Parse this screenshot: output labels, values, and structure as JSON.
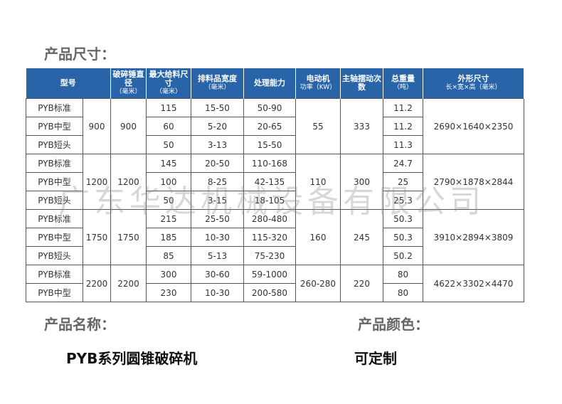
{
  "title": "产品尺寸：",
  "headers": [
    {
      "t": "型号",
      "s": ""
    },
    {
      "t": "破碎锤直径",
      "s": "（毫米）"
    },
    {
      "t": "最大给料尺寸",
      "s": "（毫米）"
    },
    {
      "t": "排料品宽度",
      "s": "（毫米）"
    },
    {
      "t": "处理能力",
      "s": ""
    },
    {
      "t": "电动机",
      "s": "功率（KW）"
    },
    {
      "t": "主轴摆动次数",
      "s": ""
    },
    {
      "t": "总重量",
      "s": "（吨）"
    },
    {
      "t": "外形尺寸",
      "s": "长×宽×高（毫米）"
    }
  ],
  "groups": [
    {
      "dia": "900",
      "motor": "55",
      "swing": "333",
      "size": "2690×1640×2350",
      "rows": [
        [
          "PYB标准",
          "115",
          "15-50",
          "50-90",
          "11.2"
        ],
        [
          "PYB中型",
          "60",
          "5-20",
          "20-65",
          "11.2"
        ],
        [
          "PYB短头",
          "50",
          "3-13",
          "15-50",
          "11.3"
        ]
      ]
    },
    {
      "dia": "1200",
      "motor": "110",
      "swing": "300",
      "size": "2790×1878×2844",
      "rows": [
        [
          "PYB标准",
          "145",
          "20-50",
          "110-168",
          "24.7"
        ],
        [
          "PYB中型",
          "100",
          "8-25",
          "42-135",
          "25"
        ],
        [
          "PYB短头",
          "50",
          "3-15",
          "18-105",
          "25.3"
        ]
      ]
    },
    {
      "dia": "1750",
      "motor": "160",
      "swing": "245",
      "size": "3910×2894×3809",
      "rows": [
        [
          "PYB标准",
          "215",
          "25-50",
          "280-480",
          "50.3"
        ],
        [
          "PYB中型",
          "185",
          "10-30",
          "115-320",
          "50.3"
        ],
        [
          "PYB短头",
          "85",
          "5-13",
          "75-230",
          "50.2"
        ]
      ]
    },
    {
      "dia": "2200",
      "motor": "260-280",
      "swing": "220",
      "size": "4622×3302×4470",
      "rows": [
        [
          "PYB标准",
          "300",
          "30-60",
          "59-1000",
          "80"
        ],
        [
          "PYB中型",
          "230",
          "10-30",
          "200-580",
          "80"
        ]
      ]
    }
  ],
  "watermark": "广东华达机械设备有限公司",
  "name_label": "产品名称：",
  "name_value": "PYB系列圆锥破碎机",
  "color_label": "产品颜色：",
  "color_value": "可定制"
}
